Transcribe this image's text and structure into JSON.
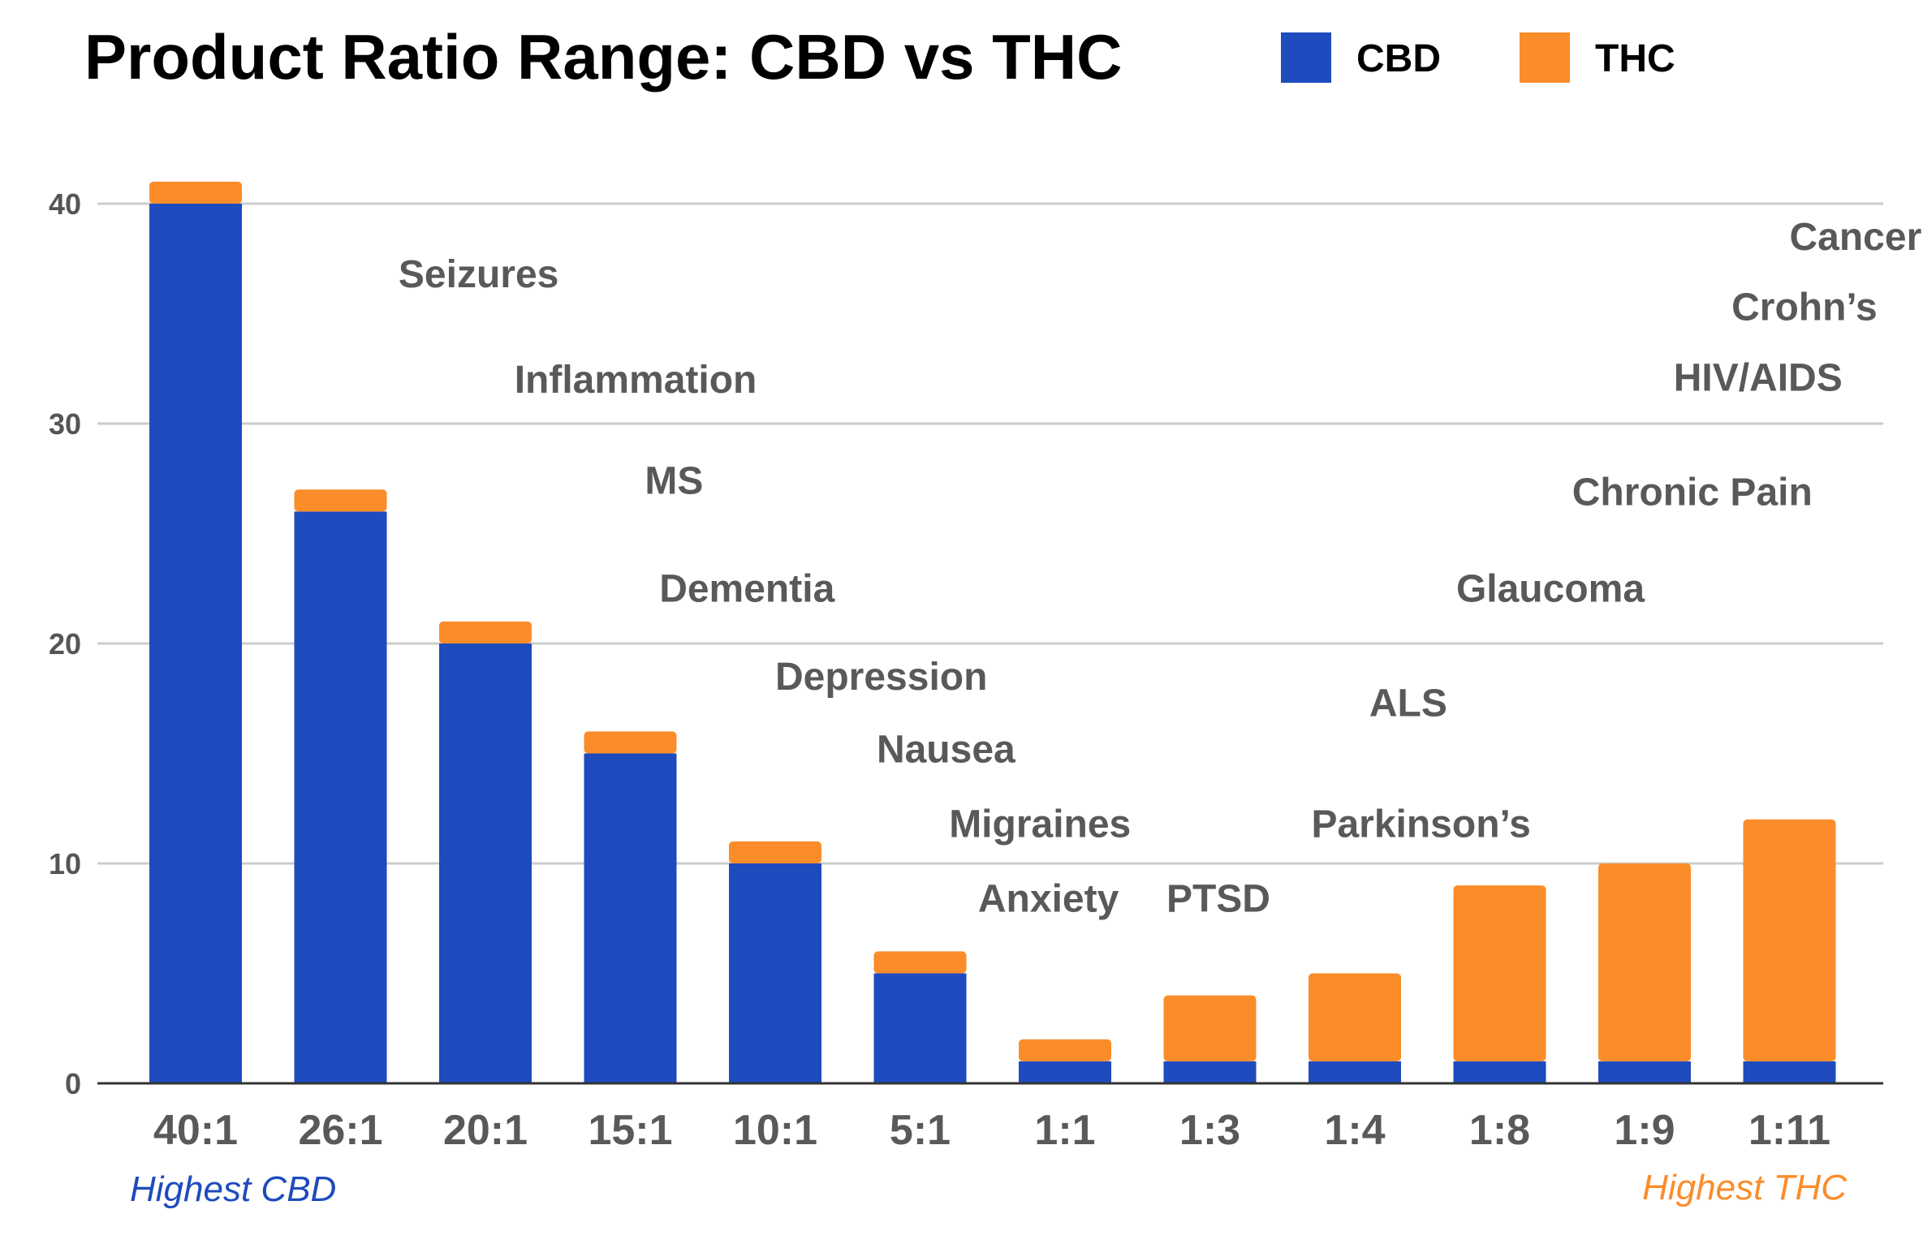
{
  "chart_data": {
    "type": "bar",
    "stacked": true,
    "title": "Product Ratio Range: CBD vs THC",
    "categories": [
      "40:1",
      "26:1",
      "20:1",
      "15:1",
      "10:1",
      "5:1",
      "1:1",
      "1:3",
      "1:4",
      "1:8",
      "1:9",
      "1:11"
    ],
    "series": [
      {
        "name": "CBD",
        "color": "#1e4bbd",
        "values": [
          40,
          26,
          20,
          15,
          10,
          5,
          1,
          1,
          1,
          1,
          1,
          1
        ]
      },
      {
        "name": "THC",
        "color": "#fb8c2a",
        "values": [
          1,
          1,
          1,
          1,
          1,
          1,
          1,
          3,
          4,
          8,
          9,
          11
        ]
      }
    ],
    "ylim": [
      0,
      42
    ],
    "yticks": [
      "0",
      "10",
      "20",
      "30",
      "40"
    ],
    "grid": true,
    "legend_position": "top-right",
    "xlabel": "",
    "ylabel": "",
    "annotations": [
      {
        "text": "Seizures",
        "x": 1.4,
        "y": 36.2
      },
      {
        "text": "Inflammation",
        "x": 2.2,
        "y": 31.4
      },
      {
        "text": "MS",
        "x": 3.1,
        "y": 26.8
      },
      {
        "text": "Dementia",
        "x": 3.2,
        "y": 21.9
      },
      {
        "text": "Depression",
        "x": 4.0,
        "y": 17.9
      },
      {
        "text": "Nausea",
        "x": 4.7,
        "y": 14.6
      },
      {
        "text": "Migraines",
        "x": 5.2,
        "y": 11.2
      },
      {
        "text": "Anxiety",
        "x": 5.4,
        "y": 7.8
      },
      {
        "text": "PTSD",
        "x": 6.7,
        "y": 7.8
      },
      {
        "text": "Parkinson’s",
        "x": 7.7,
        "y": 11.2
      },
      {
        "text": "ALS",
        "x": 8.1,
        "y": 16.7
      },
      {
        "text": "Glaucoma",
        "x": 8.7,
        "y": 21.9
      },
      {
        "text": "Chronic Pain",
        "x": 9.5,
        "y": 26.3
      },
      {
        "text": "HIV/AIDS",
        "x": 10.2,
        "y": 31.5
      },
      {
        "text": "Crohn’s",
        "x": 10.6,
        "y": 34.7
      },
      {
        "text": "Cancer",
        "x": 11.0,
        "y": 37.9
      }
    ],
    "corner_labels": {
      "left": {
        "text": "Highest CBD",
        "color": "#1e4bbd"
      },
      "right": {
        "text": "Highest THC",
        "color": "#fb8c2a"
      }
    }
  }
}
